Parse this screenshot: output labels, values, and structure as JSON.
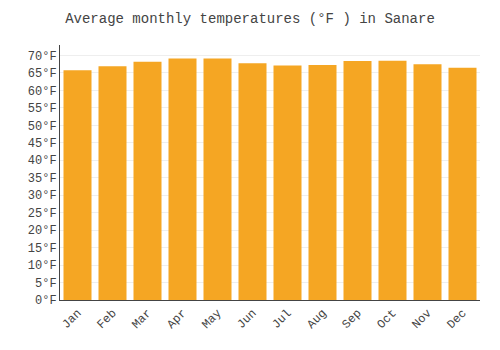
{
  "chart_data": {
    "type": "bar",
    "title": "Average monthly temperatures (°F ) in Sanare",
    "categories": [
      "Jan",
      "Feb",
      "Mar",
      "Apr",
      "May",
      "Jun",
      "Jul",
      "Aug",
      "Sep",
      "Oct",
      "Nov",
      "Dec"
    ],
    "values": [
      65.8,
      66.9,
      68.2,
      69.1,
      69.1,
      67.8,
      67.1,
      67.3,
      68.4,
      68.5,
      67.5,
      66.5
    ],
    "color": "#F5A623",
    "ylim": [
      0,
      73
    ],
    "yticks": [
      {
        "value": 0,
        "label": "0°F"
      },
      {
        "value": 5,
        "label": "5°F"
      },
      {
        "value": 10,
        "label": "10°F"
      },
      {
        "value": 15,
        "label": "15°F"
      },
      {
        "value": 20,
        "label": "20°F"
      },
      {
        "value": 25,
        "label": "25°F"
      },
      {
        "value": 30,
        "label": "30°F"
      },
      {
        "value": 35,
        "label": "35°F"
      },
      {
        "value": 40,
        "label": "40°F"
      },
      {
        "value": 45,
        "label": "45°F"
      },
      {
        "value": 50,
        "label": "50°F"
      },
      {
        "value": 55,
        "label": "55°F"
      },
      {
        "value": 60,
        "label": "60°F"
      },
      {
        "value": 65,
        "label": "65°F"
      },
      {
        "value": 70,
        "label": "70°F"
      }
    ],
    "grid": true
  }
}
